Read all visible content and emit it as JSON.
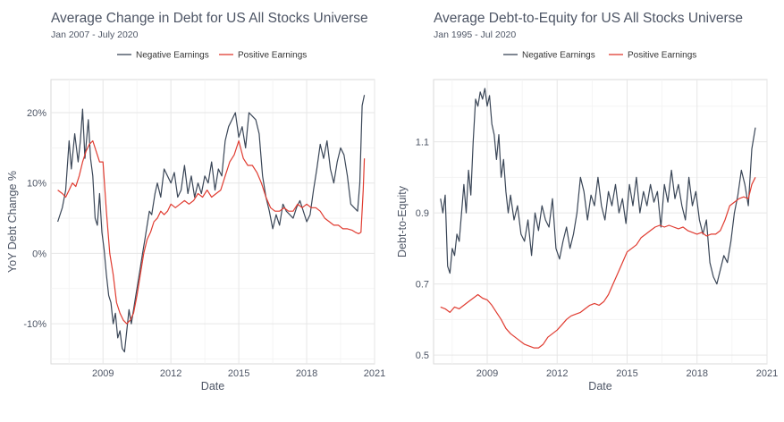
{
  "chart_data": [
    {
      "type": "line",
      "title": "Average Change in Debt for US All Stocks Universe",
      "subtitle": "Jan 2007 - July 2020",
      "xlabel": "Date",
      "ylabel": "YoY Debt Change %",
      "xlim": [
        2006.7,
        2021.0
      ],
      "ylim": [
        -0.157,
        0.247
      ],
      "xticks": [
        2009,
        2012,
        2015,
        2018,
        2021
      ],
      "xtick_labels": [
        "2009",
        "2012",
        "2015",
        "2018",
        "2021"
      ],
      "yticks": [
        -0.1,
        0.0,
        0.1,
        0.2
      ],
      "ytick_labels": [
        "-10%",
        "0%",
        "10%",
        "20%"
      ],
      "legend_position": "top",
      "grid": true,
      "series": [
        {
          "name": "Negative Earnings",
          "color": "#3a4657",
          "x": [
            2007.0,
            2007.2,
            2007.35,
            2007.5,
            2007.6,
            2007.75,
            2007.9,
            2008.0,
            2008.1,
            2008.2,
            2008.35,
            2008.45,
            2008.55,
            2008.65,
            2008.75,
            2008.85,
            2008.95,
            2009.05,
            2009.15,
            2009.25,
            2009.35,
            2009.45,
            2009.55,
            2009.65,
            2009.75,
            2009.85,
            2009.95,
            2010.05,
            2010.15,
            2010.25,
            2010.35,
            2010.45,
            2010.55,
            2010.65,
            2010.75,
            2010.85,
            2010.95,
            2011.05,
            2011.15,
            2011.3,
            2011.4,
            2011.55,
            2011.7,
            2011.85,
            2012.0,
            2012.15,
            2012.3,
            2012.45,
            2012.6,
            2012.75,
            2012.9,
            2013.05,
            2013.2,
            2013.35,
            2013.5,
            2013.65,
            2013.8,
            2013.95,
            2014.1,
            2014.25,
            2014.4,
            2014.55,
            2014.7,
            2014.85,
            2015.0,
            2015.15,
            2015.3,
            2015.45,
            2015.6,
            2015.75,
            2015.9,
            2016.05,
            2016.2,
            2016.35,
            2016.5,
            2016.65,
            2016.8,
            2016.95,
            2017.1,
            2017.25,
            2017.4,
            2017.55,
            2017.7,
            2017.85,
            2018.0,
            2018.15,
            2018.3,
            2018.45,
            2018.6,
            2018.75,
            2018.9,
            2019.05,
            2019.2,
            2019.35,
            2019.5,
            2019.65,
            2019.8,
            2019.95,
            2020.1,
            2020.25,
            2020.35,
            2020.45,
            2020.55
          ],
          "y": [
            0.045,
            0.065,
            0.09,
            0.16,
            0.12,
            0.17,
            0.13,
            0.16,
            0.205,
            0.135,
            0.19,
            0.135,
            0.11,
            0.05,
            0.04,
            0.085,
            0.03,
            0.005,
            -0.03,
            -0.06,
            -0.07,
            -0.1,
            -0.085,
            -0.12,
            -0.11,
            -0.135,
            -0.14,
            -0.11,
            -0.08,
            -0.1,
            -0.08,
            -0.06,
            -0.04,
            -0.02,
            0.0,
            0.02,
            0.04,
            0.06,
            0.055,
            0.085,
            0.1,
            0.08,
            0.12,
            0.11,
            0.1,
            0.115,
            0.08,
            0.09,
            0.125,
            0.085,
            0.11,
            0.08,
            0.1,
            0.085,
            0.11,
            0.1,
            0.13,
            0.09,
            0.12,
            0.11,
            0.16,
            0.18,
            0.19,
            0.2,
            0.165,
            0.18,
            0.15,
            0.2,
            0.195,
            0.19,
            0.17,
            0.11,
            0.08,
            0.06,
            0.035,
            0.055,
            0.04,
            0.07,
            0.06,
            0.055,
            0.05,
            0.065,
            0.075,
            0.06,
            0.045,
            0.055,
            0.09,
            0.12,
            0.155,
            0.135,
            0.16,
            0.12,
            0.1,
            0.13,
            0.15,
            0.14,
            0.11,
            0.07,
            0.065,
            0.06,
            0.1,
            0.21,
            0.225
          ]
        },
        {
          "name": "Positive Earnings",
          "color": "#e03c31",
          "x": [
            2007.0,
            2007.2,
            2007.35,
            2007.5,
            2007.65,
            2007.8,
            2007.95,
            2008.1,
            2008.25,
            2008.4,
            2008.55,
            2008.7,
            2008.85,
            2009.0,
            2009.15,
            2009.3,
            2009.45,
            2009.6,
            2009.75,
            2009.9,
            2010.05,
            2010.2,
            2010.35,
            2010.5,
            2010.65,
            2010.8,
            2010.95,
            2011.1,
            2011.25,
            2011.4,
            2011.55,
            2011.7,
            2011.85,
            2012.0,
            2012.2,
            2012.4,
            2012.6,
            2012.8,
            2013.0,
            2013.2,
            2013.4,
            2013.6,
            2013.8,
            2014.0,
            2014.2,
            2014.4,
            2014.6,
            2014.8,
            2015.0,
            2015.2,
            2015.4,
            2015.6,
            2015.8,
            2016.0,
            2016.2,
            2016.4,
            2016.6,
            2016.8,
            2017.0,
            2017.2,
            2017.4,
            2017.6,
            2017.8,
            2018.0,
            2018.2,
            2018.4,
            2018.6,
            2018.8,
            2019.0,
            2019.2,
            2019.4,
            2019.6,
            2019.8,
            2020.0,
            2020.15,
            2020.3,
            2020.4,
            2020.5,
            2020.55
          ],
          "y": [
            0.09,
            0.085,
            0.08,
            0.09,
            0.1,
            0.095,
            0.11,
            0.13,
            0.145,
            0.155,
            0.16,
            0.145,
            0.13,
            0.13,
            0.06,
            0.0,
            -0.03,
            -0.07,
            -0.085,
            -0.095,
            -0.1,
            -0.095,
            -0.085,
            -0.06,
            -0.03,
            0.0,
            0.02,
            0.03,
            0.045,
            0.05,
            0.06,
            0.055,
            0.06,
            0.07,
            0.065,
            0.07,
            0.075,
            0.07,
            0.075,
            0.085,
            0.08,
            0.09,
            0.08,
            0.085,
            0.09,
            0.11,
            0.13,
            0.14,
            0.16,
            0.135,
            0.125,
            0.125,
            0.115,
            0.1,
            0.08,
            0.065,
            0.06,
            0.06,
            0.065,
            0.06,
            0.06,
            0.07,
            0.065,
            0.07,
            0.065,
            0.065,
            0.06,
            0.05,
            0.045,
            0.04,
            0.04,
            0.035,
            0.035,
            0.033,
            0.03,
            0.028,
            0.03,
            0.09,
            0.135
          ]
        }
      ]
    },
    {
      "type": "line",
      "title": "Average Debt-to-Equity for US All Stocks Universe",
      "subtitle": "Jan 1995 - Jul 2020",
      "xlabel": "Date",
      "ylabel": "Debt-to-Equity",
      "xlim": [
        2006.7,
        2021.0
      ],
      "ylim": [
        0.475,
        1.275
      ],
      "xticks": [
        2009,
        2012,
        2015,
        2018,
        2021
      ],
      "xtick_labels": [
        "2009",
        "2012",
        "2015",
        "2018",
        "2021"
      ],
      "yticks": [
        0.5,
        0.7,
        0.9,
        1.1
      ],
      "ytick_labels": [
        "0.5",
        "0.7",
        "0.9",
        "1.1"
      ],
      "legend_position": "top",
      "grid": true,
      "series": [
        {
          "name": "Negative Earnings",
          "color": "#3a4657",
          "x": [
            2007.0,
            2007.1,
            2007.2,
            2007.3,
            2007.4,
            2007.5,
            2007.6,
            2007.7,
            2007.8,
            2007.9,
            2008.0,
            2008.1,
            2008.2,
            2008.3,
            2008.4,
            2008.5,
            2008.6,
            2008.7,
            2008.8,
            2008.9,
            2009.0,
            2009.1,
            2009.2,
            2009.3,
            2009.4,
            2009.5,
            2009.6,
            2009.7,
            2009.8,
            2009.9,
            2010.0,
            2010.15,
            2010.3,
            2010.45,
            2010.6,
            2010.75,
            2010.9,
            2011.05,
            2011.2,
            2011.35,
            2011.5,
            2011.65,
            2011.8,
            2011.95,
            2012.1,
            2012.25,
            2012.4,
            2012.55,
            2012.7,
            2012.85,
            2013.0,
            2013.15,
            2013.3,
            2013.45,
            2013.6,
            2013.75,
            2013.9,
            2014.05,
            2014.2,
            2014.35,
            2014.5,
            2014.65,
            2014.8,
            2014.95,
            2015.1,
            2015.25,
            2015.4,
            2015.55,
            2015.7,
            2015.85,
            2016.0,
            2016.15,
            2016.3,
            2016.45,
            2016.6,
            2016.75,
            2016.9,
            2017.05,
            2017.2,
            2017.35,
            2017.5,
            2017.65,
            2017.8,
            2017.95,
            2018.1,
            2018.25,
            2018.4,
            2018.55,
            2018.7,
            2018.85,
            2019.0,
            2019.15,
            2019.3,
            2019.45,
            2019.6,
            2019.75,
            2019.9,
            2020.05,
            2020.2,
            2020.35,
            2020.5
          ],
          "y": [
            0.94,
            0.9,
            0.95,
            0.75,
            0.73,
            0.8,
            0.78,
            0.84,
            0.82,
            0.9,
            0.98,
            0.9,
            1.02,
            0.95,
            1.1,
            1.22,
            1.2,
            1.24,
            1.22,
            1.25,
            1.2,
            1.23,
            1.15,
            1.12,
            1.05,
            1.12,
            1.0,
            1.05,
            0.96,
            0.9,
            0.95,
            0.88,
            0.92,
            0.84,
            0.82,
            0.88,
            0.78,
            0.9,
            0.85,
            0.92,
            0.88,
            0.86,
            0.94,
            0.8,
            0.77,
            0.82,
            0.86,
            0.8,
            0.84,
            0.9,
            1.0,
            0.96,
            0.88,
            0.95,
            0.92,
            1.0,
            0.92,
            0.88,
            0.96,
            0.92,
            0.98,
            0.9,
            0.94,
            0.87,
            0.98,
            0.92,
            1.0,
            0.9,
            0.96,
            0.92,
            0.98,
            0.93,
            0.96,
            0.86,
            0.98,
            0.93,
            1.02,
            0.94,
            0.98,
            0.92,
            0.88,
            1.0,
            0.92,
            0.96,
            0.88,
            0.84,
            0.88,
            0.76,
            0.72,
            0.7,
            0.74,
            0.78,
            0.76,
            0.82,
            0.9,
            0.95,
            1.02,
            0.98,
            0.92,
            1.08,
            1.14
          ]
        },
        {
          "name": "Positive Earnings",
          "color": "#e03c31",
          "x": [
            2007.0,
            2007.2,
            2007.4,
            2007.6,
            2007.8,
            2008.0,
            2008.2,
            2008.4,
            2008.6,
            2008.8,
            2009.0,
            2009.2,
            2009.4,
            2009.6,
            2009.8,
            2010.0,
            2010.2,
            2010.4,
            2010.6,
            2010.8,
            2011.0,
            2011.2,
            2011.4,
            2011.6,
            2011.8,
            2012.0,
            2012.2,
            2012.4,
            2012.6,
            2012.8,
            2013.0,
            2013.2,
            2013.4,
            2013.6,
            2013.8,
            2014.0,
            2014.2,
            2014.4,
            2014.6,
            2014.8,
            2015.0,
            2015.2,
            2015.4,
            2015.6,
            2015.8,
            2016.0,
            2016.2,
            2016.4,
            2016.6,
            2016.8,
            2017.0,
            2017.2,
            2017.4,
            2017.6,
            2017.8,
            2018.0,
            2018.2,
            2018.4,
            2018.6,
            2018.8,
            2019.0,
            2019.2,
            2019.4,
            2019.6,
            2019.8,
            2020.0,
            2020.2,
            2020.35,
            2020.5
          ],
          "y": [
            0.635,
            0.63,
            0.62,
            0.635,
            0.63,
            0.64,
            0.65,
            0.66,
            0.67,
            0.66,
            0.655,
            0.64,
            0.62,
            0.6,
            0.575,
            0.56,
            0.55,
            0.54,
            0.53,
            0.525,
            0.52,
            0.52,
            0.53,
            0.55,
            0.56,
            0.57,
            0.585,
            0.6,
            0.61,
            0.615,
            0.62,
            0.63,
            0.64,
            0.645,
            0.64,
            0.65,
            0.67,
            0.7,
            0.73,
            0.76,
            0.79,
            0.8,
            0.81,
            0.83,
            0.84,
            0.85,
            0.86,
            0.865,
            0.86,
            0.865,
            0.86,
            0.855,
            0.86,
            0.85,
            0.845,
            0.84,
            0.845,
            0.835,
            0.84,
            0.84,
            0.85,
            0.88,
            0.92,
            0.93,
            0.94,
            0.945,
            0.94,
            0.98,
            1.0
          ]
        }
      ]
    }
  ]
}
